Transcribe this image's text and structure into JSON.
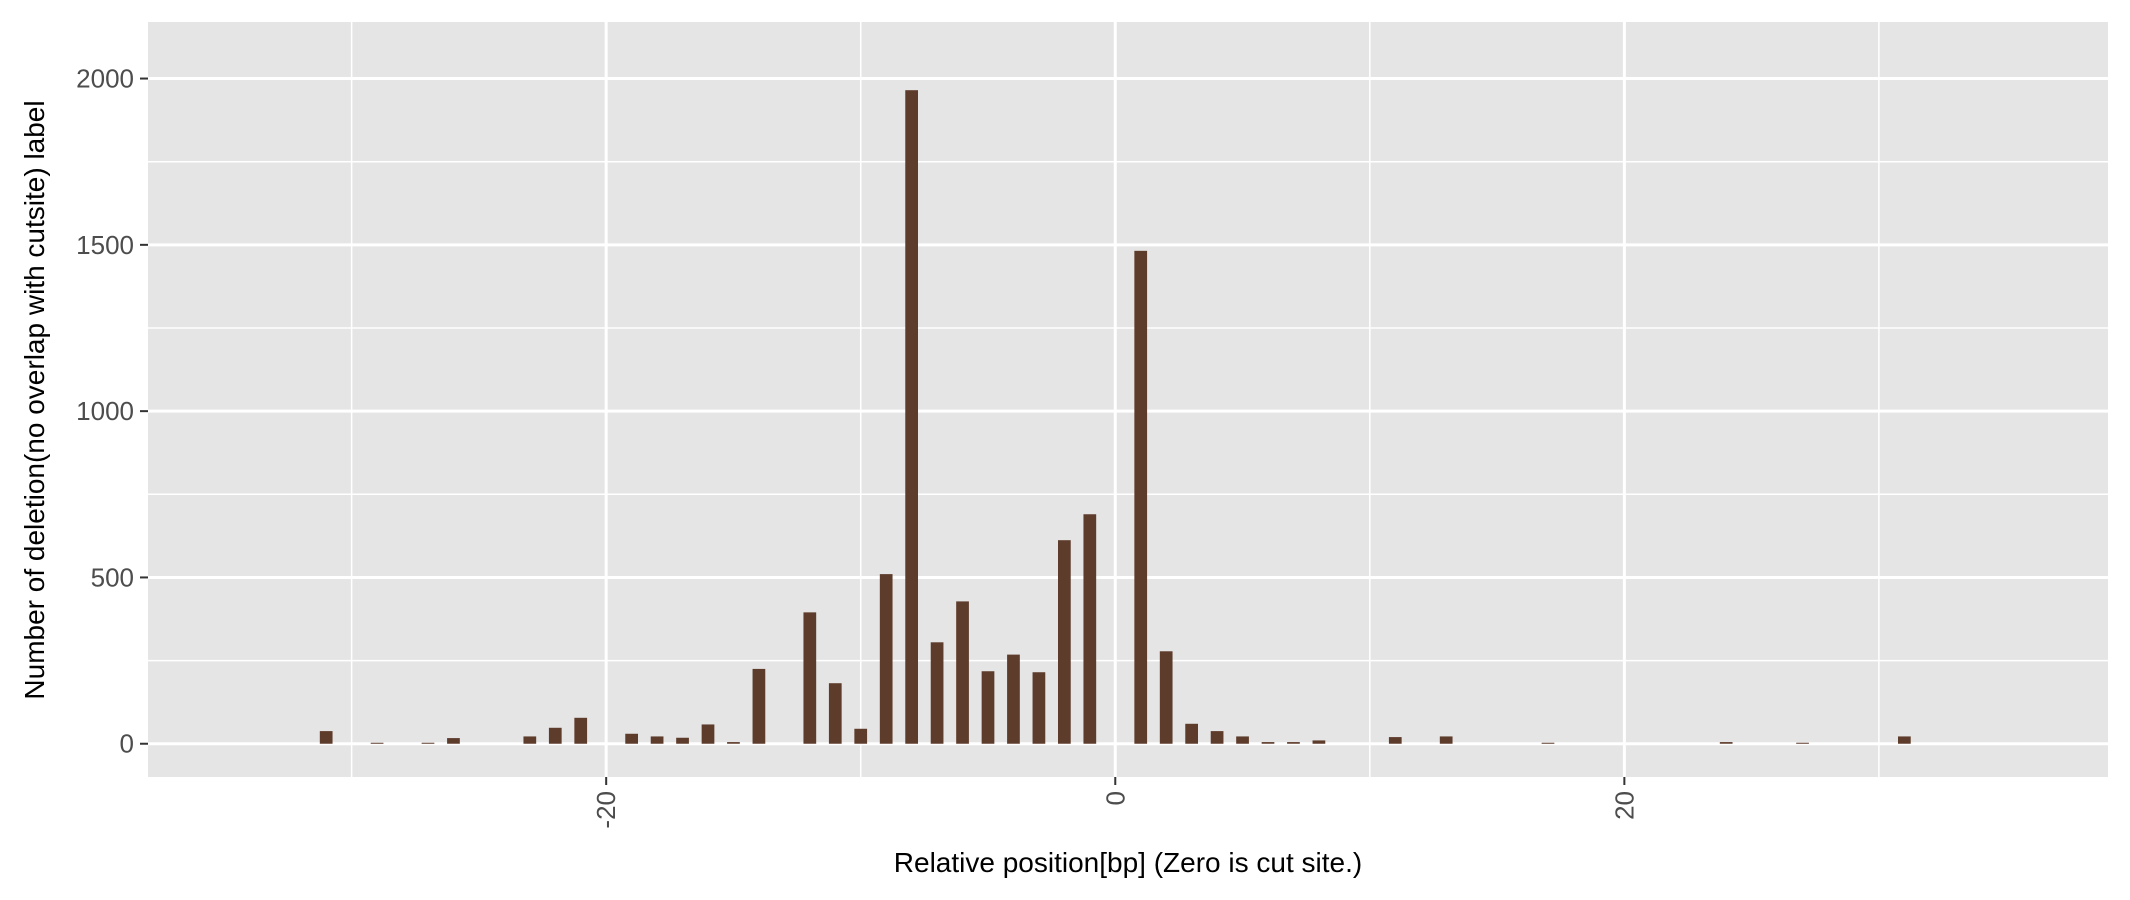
{
  "chart_data": {
    "type": "bar",
    "xlabel": "Relative position[bp] (Zero is cut site.)",
    "ylabel": "Number of deletion(no overlap with cutsite) label",
    "xlim": [
      -38,
      39
    ],
    "ylim": [
      -100,
      2170
    ],
    "x_ticks": [
      -20,
      0,
      20
    ],
    "x_tick_labels": [
      "-20",
      "0",
      "20"
    ],
    "y_ticks": [
      0,
      500,
      1000,
      1500,
      2000
    ],
    "y_tick_labels": [
      "0",
      "500",
      "1000",
      "1500",
      "2000"
    ],
    "grid": true,
    "legend": "none",
    "bar_color": "#5e3c2c",
    "panel_color": "#e5e5e5",
    "grid_color": "#ffffff",
    "x": [
      -31,
      -29,
      -27,
      -26,
      -23,
      -22,
      -21,
      -19,
      -18,
      -17,
      -16,
      -15,
      -14,
      -12,
      -11,
      -10,
      -9,
      -8,
      -7,
      -6,
      -5,
      -4,
      -3,
      -2,
      -1,
      1,
      2,
      3,
      4,
      5,
      6,
      7,
      8,
      11,
      13,
      17,
      24,
      27,
      31
    ],
    "values": [
      38,
      3,
      3,
      17,
      22,
      48,
      78,
      30,
      22,
      18,
      58,
      5,
      225,
      395,
      182,
      45,
      510,
      1965,
      305,
      428,
      218,
      268,
      215,
      612,
      690,
      1482,
      278,
      60,
      38,
      22,
      5,
      5,
      10,
      20,
      22,
      3,
      5,
      3,
      22
    ]
  }
}
